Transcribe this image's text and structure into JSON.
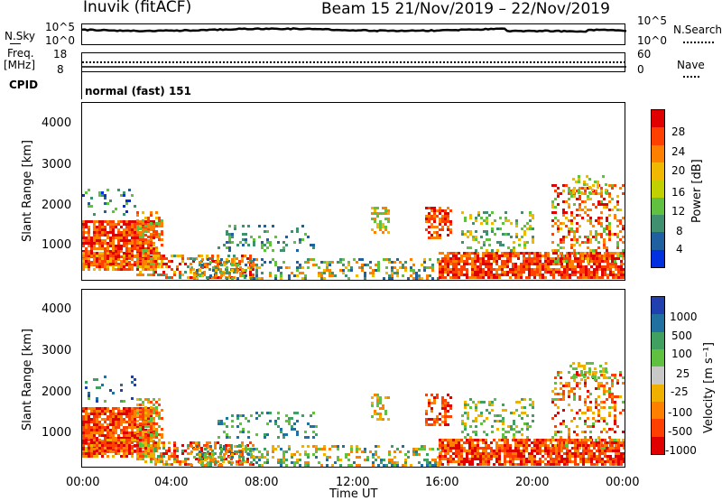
{
  "header": {
    "station": "Inuvik (fitACF)",
    "beam_dates": "Beam 15  21/Nov/2019 – 22/Nov/2019"
  },
  "top_panels": {
    "nsky_label": "N.Sky",
    "nsearch_label": "N.Search",
    "nsky_ticks": [
      "10^5",
      "10^0"
    ],
    "nsearch_ticks": [
      "10^5",
      "10^0"
    ],
    "freq_label": "Freq.",
    "freq_unit": "[MHz]",
    "freq_ticks": [
      "18",
      "8"
    ],
    "nave_label": "Nave",
    "nave_ticks": [
      "60",
      "0"
    ],
    "cpid_label": "CPID",
    "cpid_value": "normal (fast) 151"
  },
  "chart_data": [
    {
      "type": "heatmap",
      "ylabel": "Slant Range [km]",
      "xlabel": "Time UT",
      "ylim": [
        180,
        4600
      ],
      "y_ticks": [
        "4000",
        "3000",
        "2000",
        "1000"
      ],
      "x_ticks": [
        "00:00",
        "04:00",
        "08:00",
        "12:00",
        "16:00",
        "20:00",
        "00:00"
      ],
      "colorbar": {
        "label": "Power [dB]",
        "ticks": [
          "28",
          "24",
          "20",
          "16",
          "12",
          "8",
          "4"
        ],
        "colors": [
          "#e00000",
          "#ff4000",
          "#ff8000",
          "#f0b800",
          "#c0d000",
          "#60c040",
          "#409070",
          "#2060a0",
          "#0030e0"
        ]
      }
    },
    {
      "type": "heatmap",
      "ylabel": "Slant Range [km]",
      "xlabel": "Time UT",
      "ylim": [
        180,
        4600
      ],
      "y_ticks": [
        "4000",
        "3000",
        "2000",
        "1000"
      ],
      "x_ticks": [
        "00:00",
        "04:00",
        "08:00",
        "12:00",
        "16:00",
        "20:00",
        "00:00"
      ],
      "colorbar": {
        "label": "Velocity [m s⁻¹]",
        "ticks": [
          "1000",
          "500",
          "100",
          "25",
          "-25",
          "-100",
          "-500",
          "-1000"
        ],
        "colors": [
          "#2040b0",
          "#2070a0",
          "#40a060",
          "#60c040",
          "#c8c8c8",
          "#f0b000",
          "#ff8000",
          "#ff4000",
          "#e00000"
        ]
      }
    }
  ],
  "x_axis": {
    "title": "Time UT",
    "ticks": [
      "00:00",
      "04:00",
      "08:00",
      "12:00",
      "16:00",
      "20:00",
      "00:00"
    ]
  }
}
